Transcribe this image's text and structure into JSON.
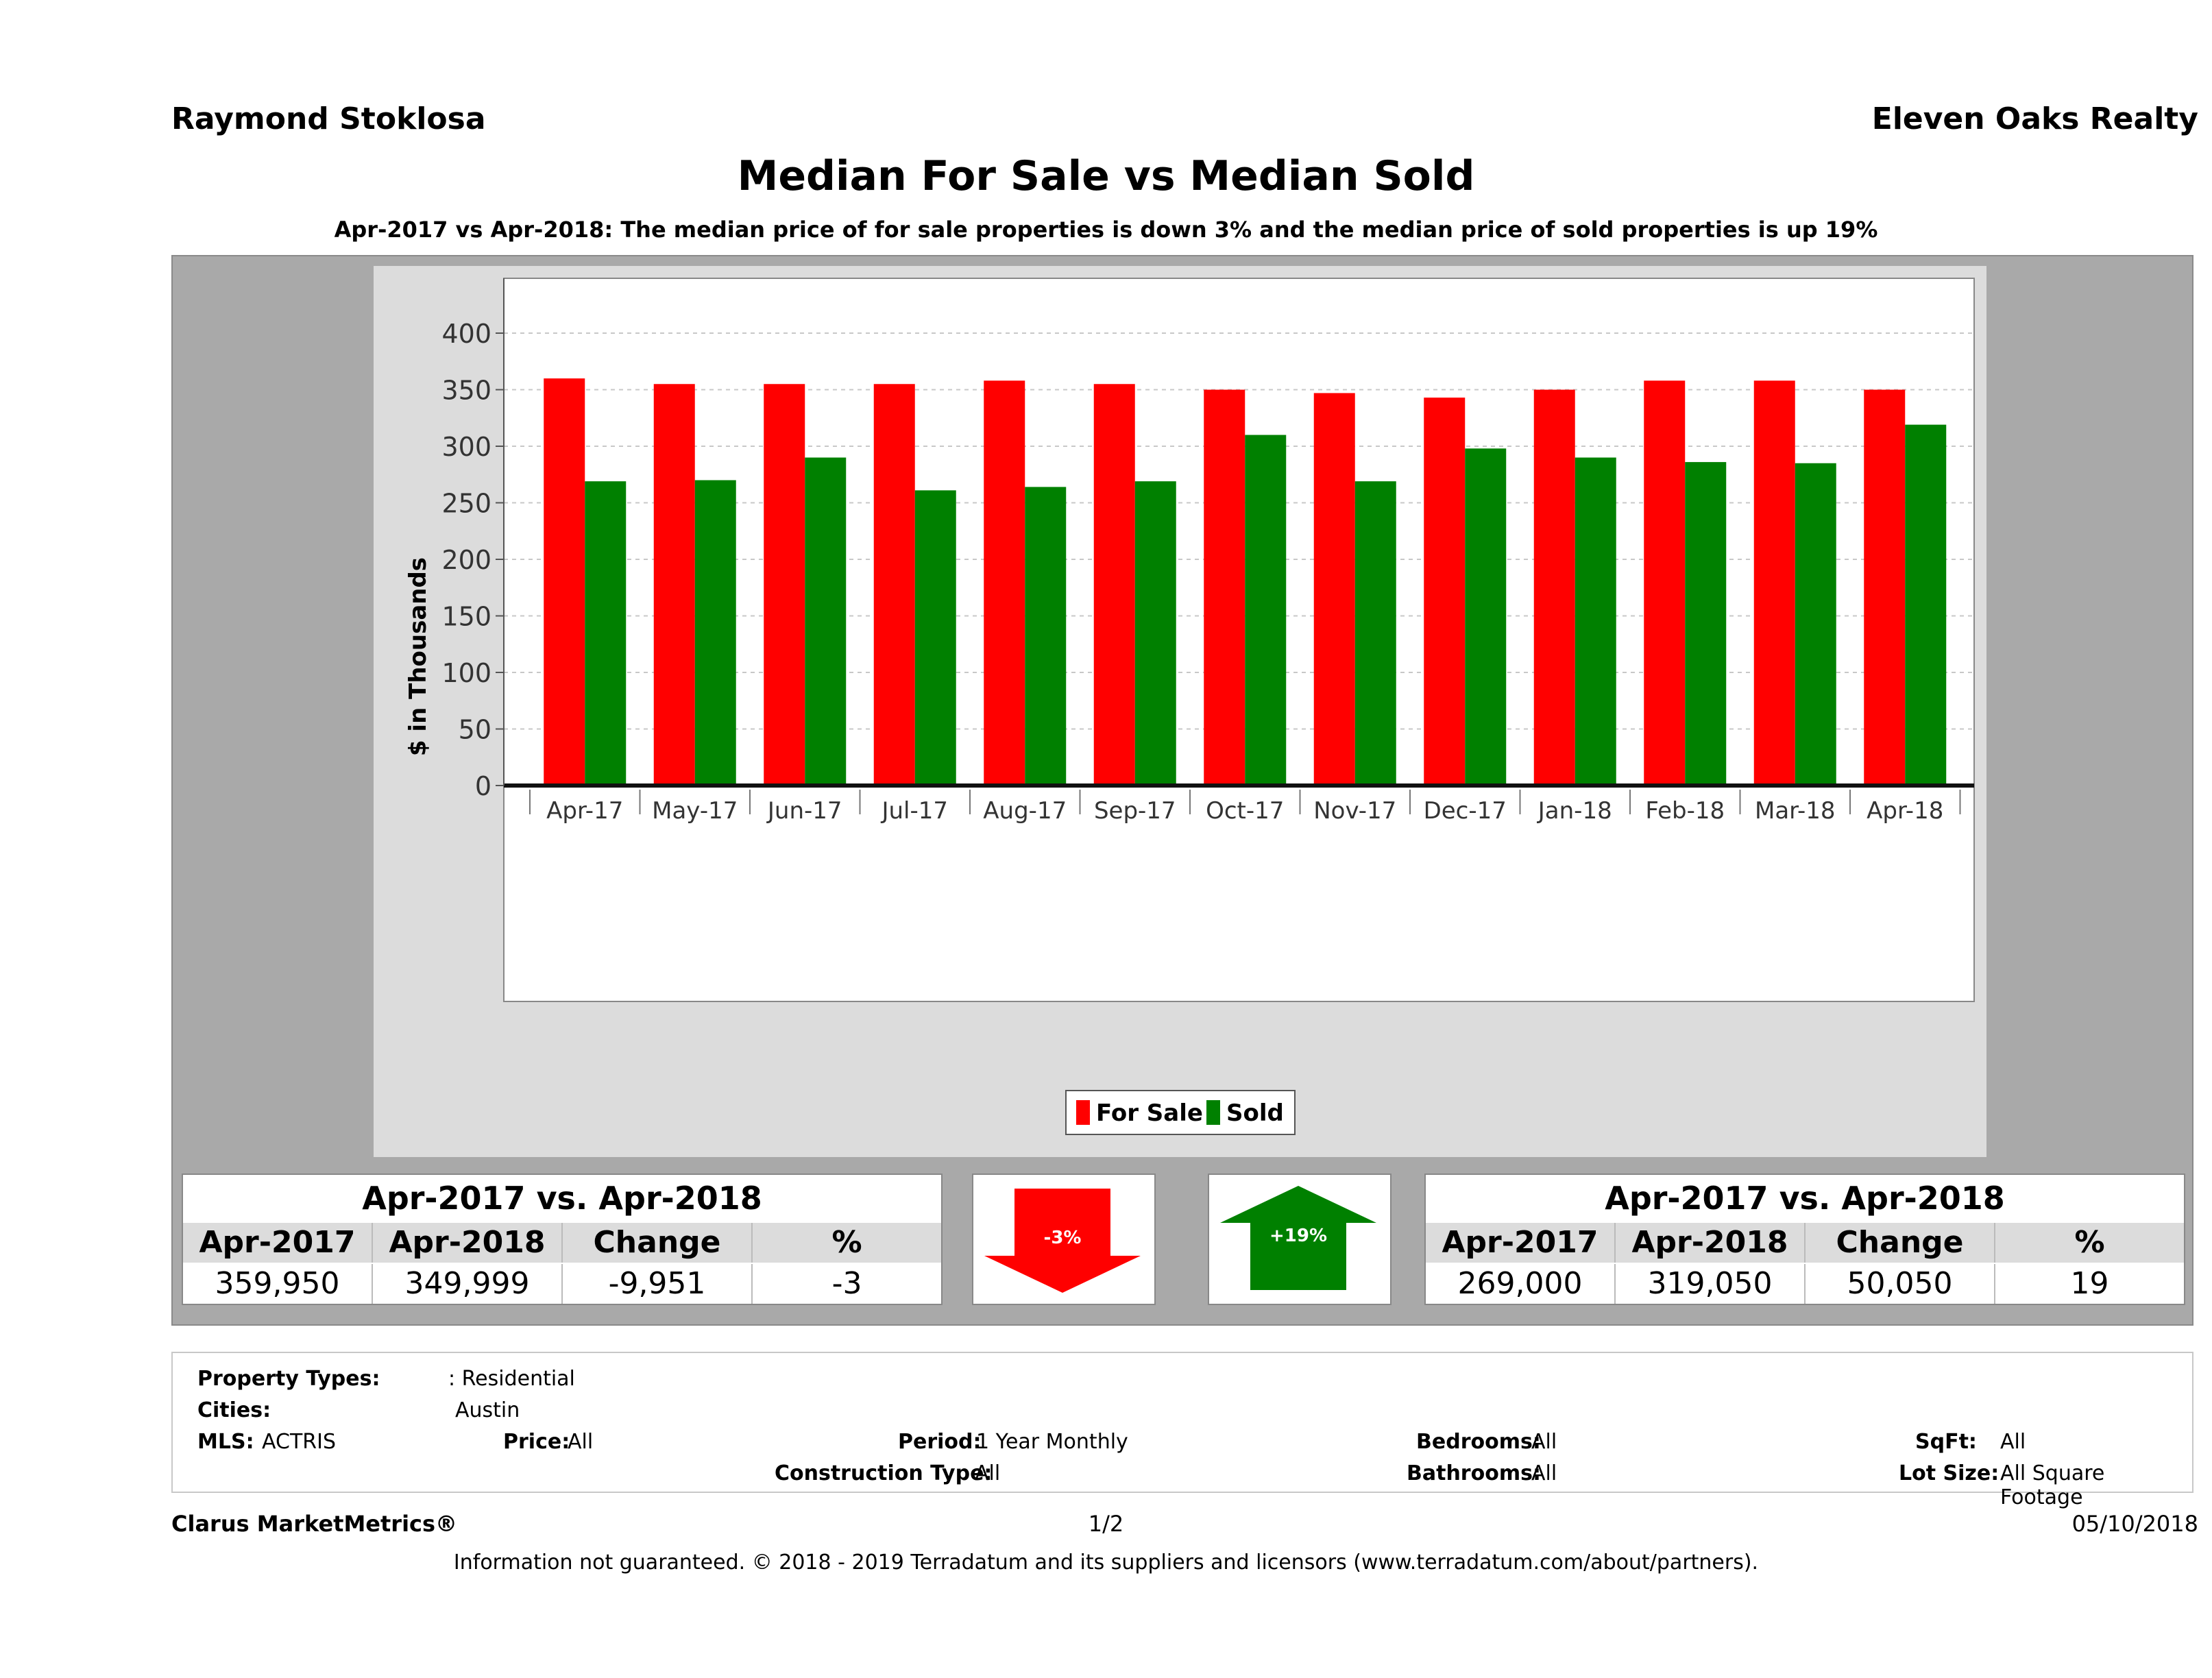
{
  "header": {
    "agent_name": "Raymond Stoklosa",
    "company_name": "Eleven Oaks Realty",
    "title": "Median For Sale vs Median Sold",
    "subtitle": "Apr-2017 vs Apr-2018: The median price of for sale properties is down 3% and the median price of sold properties is up 19%"
  },
  "chart_data": {
    "type": "bar",
    "ylabel": "$ in Thousands",
    "ylim": [
      0,
      430
    ],
    "yticks": [
      "0",
      "50",
      "100",
      "150",
      "200",
      "250",
      "300",
      "350",
      "400"
    ],
    "categories": [
      "Apr-17",
      "May-17",
      "Jun-17",
      "Jul-17",
      "Aug-17",
      "Sep-17",
      "Oct-17",
      "Nov-17",
      "Dec-17",
      "Jan-18",
      "Feb-18",
      "Mar-18",
      "Apr-18"
    ],
    "series": [
      {
        "name": "For Sale",
        "color": "#ff0000",
        "values": [
          359.95,
          355,
          355,
          355,
          358,
          355,
          350,
          347,
          343,
          350,
          358,
          358,
          350
        ]
      },
      {
        "name": "Sold",
        "color": "#008000",
        "values": [
          269,
          270,
          290,
          261,
          264,
          269,
          310,
          269,
          298,
          290,
          286,
          285,
          319.05
        ]
      }
    ],
    "grid": true,
    "legend": "bottom"
  },
  "summary_left": {
    "heading": "Apr-2017 vs. Apr-2018",
    "columns": [
      "Apr-2017",
      "Apr-2018",
      "Change",
      "%"
    ],
    "values": [
      "359,950",
      "349,999",
      "-9,951",
      "-3"
    ]
  },
  "summary_right": {
    "heading": "Apr-2017 vs. Apr-2018",
    "columns": [
      "Apr-2017",
      "Apr-2018",
      "Change",
      "%"
    ],
    "values": [
      "269,000",
      "319,050",
      "50,050",
      "19"
    ]
  },
  "arrows": {
    "down_label": "-3%",
    "down_color": "#ff0000",
    "up_label": "+19%",
    "up_color": "#008000"
  },
  "filters": {
    "property_types_label": "Property Types:",
    "property_types_value": ": Residential",
    "cities_label": "Cities:",
    "cities_value": "Austin",
    "mls_label": "MLS:",
    "mls_value": "ACTRIS",
    "price_label": "Price:",
    "price_value": "All",
    "period_label": "Period:",
    "period_value": "1 Year Monthly",
    "construction_label": "Construction Type:",
    "construction_value": "All",
    "bedrooms_label": "Bedrooms:",
    "bedrooms_value": "All",
    "bathrooms_label": "Bathrooms:",
    "bathrooms_value": "All",
    "sqft_label": "SqFt:",
    "sqft_value": "All",
    "lot_label": "Lot Size:",
    "lot_value": "All Square Footage"
  },
  "footer": {
    "brand": "Clarus MarketMetrics®",
    "page": "1/2",
    "date": "05/10/2018",
    "disclaimer": "Information not guaranteed. © 2018 - 2019 Terradatum and its suppliers and licensors (www.terradatum.com/about/partners)."
  }
}
